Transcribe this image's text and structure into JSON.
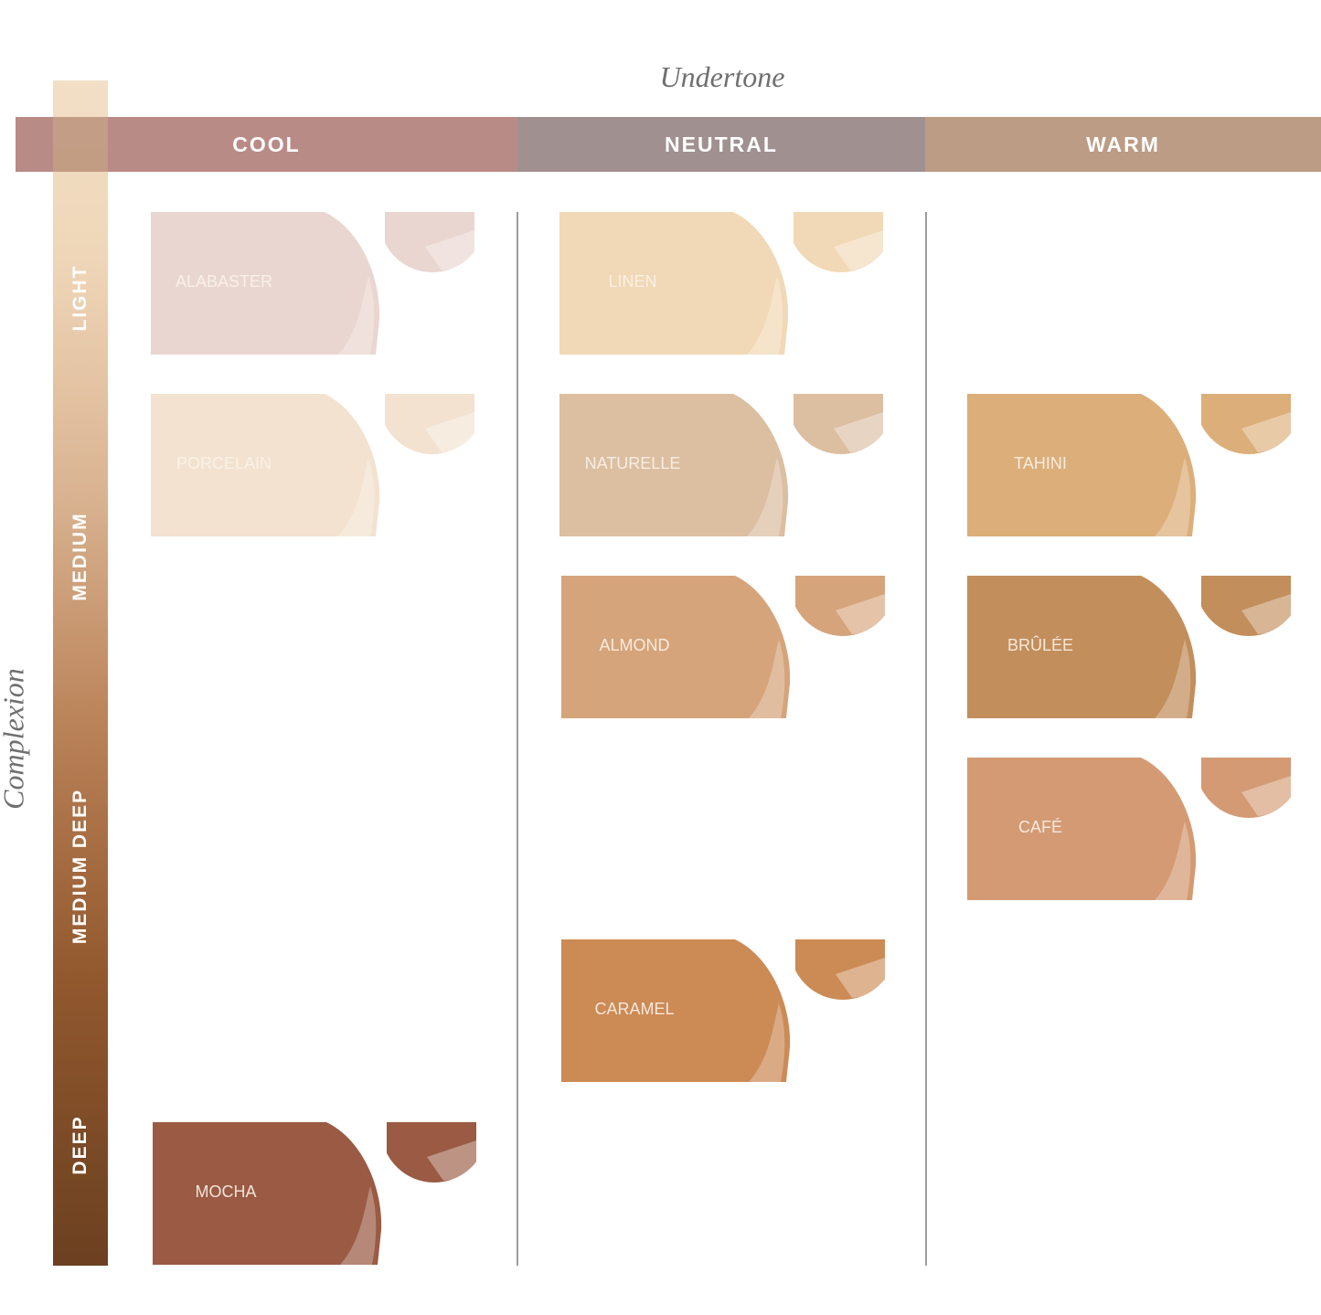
{
  "axes": {
    "undertone_title": "Undertone",
    "complexion_title": "Complexion"
  },
  "undertones": [
    {
      "label": "COOL",
      "color": "#b98b87"
    },
    {
      "label": "NEUTRAL",
      "color": "#a09190"
    },
    {
      "label": "WARM",
      "color": "#bc9c85"
    }
  ],
  "complexions": [
    "LIGHT",
    "MEDIUM",
    "MEDIUM DEEP",
    "DEEP"
  ],
  "shades": [
    {
      "name": "ALABASTER",
      "undertone": "COOL",
      "color": "#ead6d0"
    },
    {
      "name": "PORCELAIN",
      "undertone": "COOL",
      "color": "#f3e2d0"
    },
    {
      "name": "MOCHA",
      "undertone": "COOL",
      "color": "#9a5a43"
    },
    {
      "name": "LINEN",
      "undertone": "NEUTRAL",
      "color": "#f1d8b6"
    },
    {
      "name": "NATURELLE",
      "undertone": "NEUTRAL",
      "color": "#dcbea1"
    },
    {
      "name": "ALMOND",
      "undertone": "NEUTRAL",
      "color": "#d6a47a"
    },
    {
      "name": "CARAMEL",
      "undertone": "NEUTRAL",
      "color": "#cc8a55"
    },
    {
      "name": "TAHINI",
      "undertone": "WARM",
      "color": "#dcae79"
    },
    {
      "name": "BRÛLÉE",
      "undertone": "WARM",
      "color": "#c28e5c"
    },
    {
      "name": "CAFÉ",
      "undertone": "WARM",
      "color": "#d49a73"
    }
  ]
}
